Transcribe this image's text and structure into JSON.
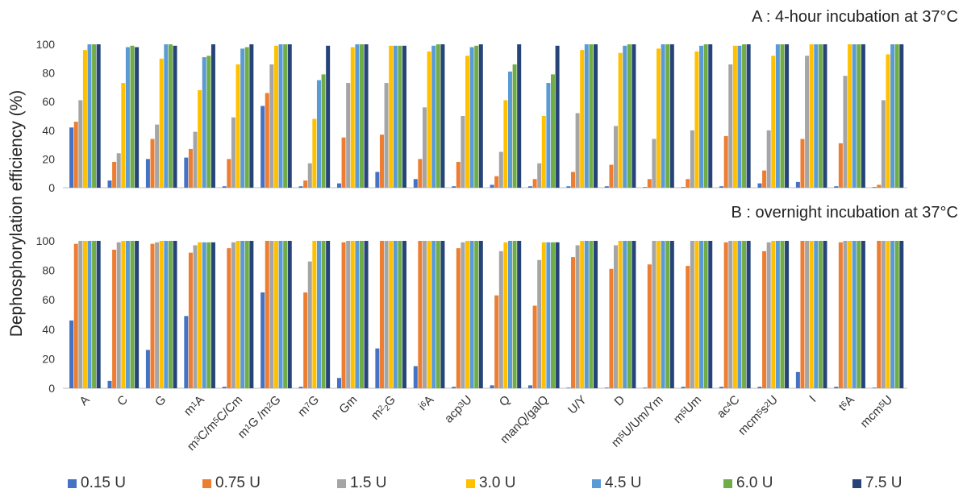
{
  "ylabel": "Dephosphorylation efficiency (%)",
  "colors": [
    "#4472C4",
    "#ED7D31",
    "#A5A5A5",
    "#FFC000",
    "#5B9BD5",
    "#70AD47",
    "#264478"
  ],
  "legend": [
    "0.15 U",
    "0.75 U",
    "1.5 U",
    "3.0 U",
    "4.5 U",
    "6.0 U",
    "7.5 U"
  ],
  "chart_data": [
    {
      "type": "bar",
      "title": "A : 4-hour incubation at 37°C",
      "categories": [
        "A",
        "C",
        "G",
        "m1A",
        "m3C/m5C/Cm",
        "m1G /m2G",
        "m7G",
        "Gm",
        "m22G",
        "i6A",
        "acp3U",
        "Q",
        "manQ/galQ",
        "U/Y",
        "D",
        "m5U/Um/Ym",
        "m5Um",
        "ac4C",
        "mcm5s2U",
        "I",
        "t6A",
        "mcm5U"
      ],
      "ylim": [
        0,
        100
      ],
      "yticks": [
        0,
        20,
        40,
        60,
        80,
        100
      ],
      "series": [
        {
          "name": "0.15 U",
          "values": [
            42,
            5,
            20,
            21,
            1,
            57,
            1,
            3,
            11,
            6,
            1,
            2,
            1,
            1,
            1,
            0,
            0,
            1,
            3,
            4,
            1,
            0
          ]
        },
        {
          "name": "0.75 U",
          "values": [
            46,
            18,
            34,
            27,
            20,
            66,
            5,
            35,
            37,
            20,
            18,
            8,
            6,
            11,
            16,
            6,
            6,
            36,
            12,
            34,
            31,
            2
          ]
        },
        {
          "name": "1.5 U",
          "values": [
            61,
            24,
            44,
            39,
            49,
            86,
            17,
            73,
            73,
            56,
            50,
            25,
            17,
            52,
            43,
            34,
            40,
            86,
            40,
            92,
            78,
            61
          ]
        },
        {
          "name": "3.0 U",
          "values": [
            96,
            73,
            90,
            68,
            86,
            99,
            48,
            98,
            99,
            95,
            92,
            61,
            50,
            96,
            94,
            97,
            95,
            99,
            92,
            100,
            100,
            93
          ]
        },
        {
          "name": "4.5 U",
          "values": [
            100,
            98,
            100,
            91,
            97,
            100,
            75,
            100,
            99,
            99,
            98,
            81,
            73,
            100,
            99,
            100,
            99,
            99,
            100,
            100,
            100,
            100
          ]
        },
        {
          "name": "6.0 U",
          "values": [
            100,
            99,
            100,
            92,
            98,
            100,
            79,
            100,
            99,
            100,
            99,
            86,
            79,
            100,
            100,
            100,
            100,
            100,
            100,
            100,
            100,
            100
          ]
        },
        {
          "name": "7.5 U",
          "values": [
            100,
            98,
            99,
            100,
            100,
            100,
            99,
            100,
            99,
            100,
            100,
            100,
            99,
            100,
            100,
            100,
            100,
            100,
            100,
            100,
            100,
            100
          ]
        }
      ]
    },
    {
      "type": "bar",
      "title": "B : overnight incubation at 37°C",
      "categories": [
        "A",
        "C",
        "G",
        "m1A",
        "m3C/m5C/Cm",
        "m1G /m2G",
        "m7G",
        "Gm",
        "m22G",
        "i6A",
        "acp3U",
        "Q",
        "manQ/galQ",
        "U/Y",
        "D",
        "m5U/Um/Ym",
        "m5Um",
        "ac4C",
        "mcm5s2U",
        "I",
        "t6A",
        "mcm5U"
      ],
      "ylim": [
        0,
        100
      ],
      "yticks": [
        0,
        20,
        40,
        60,
        80,
        100
      ],
      "series": [
        {
          "name": "0.15 U",
          "values": [
            46,
            5,
            26,
            49,
            1,
            65,
            1,
            7,
            27,
            15,
            1,
            2,
            2,
            0,
            0,
            0,
            1,
            1,
            1,
            11,
            1,
            0
          ]
        },
        {
          "name": "0.75 U",
          "values": [
            98,
            94,
            98,
            92,
            95,
            100,
            65,
            99,
            100,
            100,
            95,
            63,
            56,
            89,
            81,
            84,
            83,
            99,
            93,
            100,
            99,
            100
          ]
        },
        {
          "name": "1.5 U",
          "values": [
            100,
            99,
            99,
            97,
            99,
            100,
            86,
            100,
            100,
            100,
            99,
            93,
            87,
            97,
            97,
            100,
            100,
            100,
            99,
            100,
            100,
            100
          ]
        },
        {
          "name": "3.0 U",
          "values": [
            100,
            100,
            100,
            99,
            100,
            100,
            100,
            100,
            100,
            100,
            100,
            99,
            99,
            100,
            100,
            100,
            100,
            100,
            100,
            100,
            100,
            100
          ]
        },
        {
          "name": "4.5 U",
          "values": [
            100,
            100,
            100,
            99,
            100,
            100,
            100,
            100,
            100,
            100,
            100,
            100,
            99,
            100,
            100,
            100,
            100,
            100,
            100,
            100,
            100,
            100
          ]
        },
        {
          "name": "6.0 U",
          "values": [
            100,
            100,
            100,
            99,
            100,
            100,
            100,
            100,
            100,
            100,
            100,
            100,
            99,
            100,
            100,
            100,
            100,
            100,
            100,
            100,
            100,
            100
          ]
        },
        {
          "name": "7.5 U",
          "values": [
            100,
            100,
            100,
            99,
            100,
            100,
            100,
            100,
            100,
            100,
            100,
            100,
            99,
            100,
            100,
            100,
            100,
            100,
            100,
            100,
            100,
            100
          ]
        }
      ]
    }
  ]
}
